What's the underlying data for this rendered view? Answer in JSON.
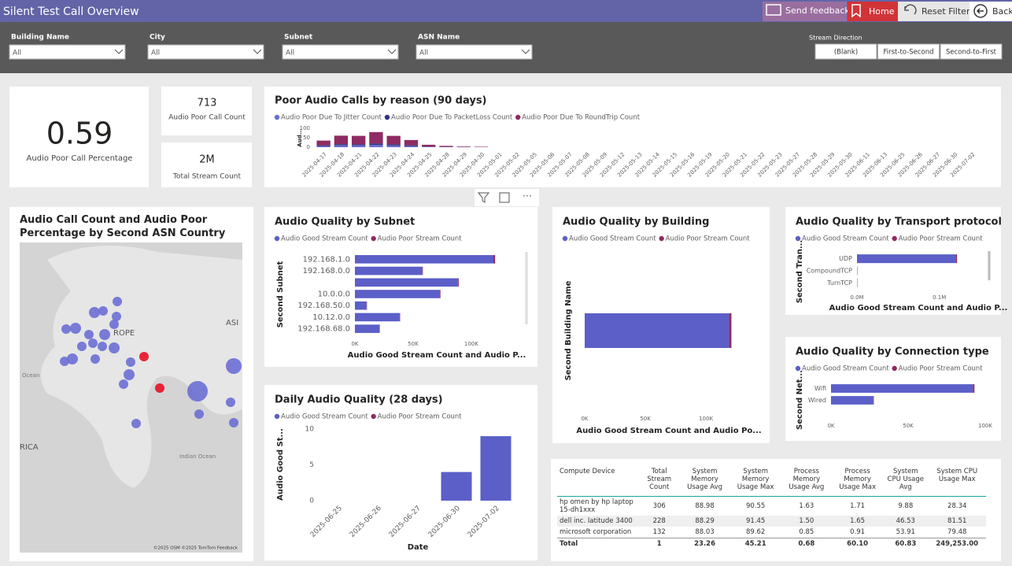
{
  "header": {
    "title": "Silent Test Call Overview",
    "buttons": [
      "Send feedback",
      "Home",
      "Reset Filters",
      "Back"
    ]
  },
  "filters": [
    {
      "label": "Building Name",
      "value": "All"
    },
    {
      "label": "City",
      "value": "All"
    },
    {
      "label": "Subnet",
      "value": "All"
    },
    {
      "label": "ASN Name",
      "value": "All"
    }
  ],
  "stream_direction": {
    "label": "Stream Direction",
    "options": [
      "(Blank)",
      "First-to-Second",
      "Second-to-First"
    ]
  },
  "cards": [
    {
      "value": 0.59,
      "label": "Audio Poor Call Percentage"
    },
    {
      "value": 713,
      "label": "Audio Poor Call Count"
    },
    {
      "value": "2M",
      "label": "Total Stream Count"
    }
  ],
  "map": {
    "title": "Audio Call Count and Audio Poor Percentage by Second ASN Country",
    "labels": [
      "ROPE",
      "ASI",
      "Ocean",
      "RICA",
      "Indian Ocean"
    ],
    "attribution": "©2025 OSM ©2025 TomTom Feedback"
  },
  "chart_data": [
    {
      "type": "stacked_bar",
      "title": "Poor Audio Calls by reason (90 days)",
      "y_label": "Aud...",
      "categories": [
        "2025-04-17",
        "2025-04-18",
        "2025-04-21",
        "2025-04-22",
        "2025-04-23",
        "2025-04-24",
        "2025-04-25",
        "2025-04-28",
        "2025-04-29",
        "2025-04-30",
        "2025-05-01",
        "2025-05-02",
        "2025-05-05",
        "2025-05-06",
        "2025-05-07",
        "2025-05-08",
        "2025-05-09",
        "2025-05-12",
        "2025-05-13",
        "2025-05-14",
        "2025-05-15",
        "2025-05-16",
        "2025-05-19",
        "2025-05-20",
        "2025-05-21",
        "2025-05-22",
        "2025-05-23",
        "2025-05-27",
        "2025-05-28",
        "2025-05-29",
        "2025-05-30",
        "2025-06-11",
        "2025-06-13",
        "2025-06-25",
        "2025-06-26",
        "2025-06-27",
        "2025-06-30",
        "2025-07-02"
      ],
      "series": [
        {
          "name": "Audio Poor Due To Jitter Count",
          "color": "#6a6ed3",
          "values": [
            6,
            10,
            10,
            12,
            9,
            6,
            2,
            1,
            1,
            1,
            0,
            0,
            0,
            0,
            0,
            0,
            0,
            0,
            0,
            0,
            0,
            0,
            0,
            0,
            0,
            0,
            0,
            0,
            0,
            0,
            0,
            0,
            0,
            0,
            0,
            0,
            0,
            0
          ]
        },
        {
          "name": "Audio Poor Due To PacketLoss Count",
          "color": "#2d3480",
          "values": [
            4,
            6,
            5,
            8,
            6,
            4,
            1,
            1,
            0,
            0,
            0,
            0,
            0,
            0,
            0,
            0,
            0,
            0,
            0,
            0,
            0,
            0,
            0,
            0,
            0,
            0,
            0,
            0,
            0,
            0,
            0,
            0,
            0,
            0,
            0,
            0,
            0,
            0
          ]
        },
        {
          "name": "Audio Poor Due To RoundTrip Count",
          "color": "#8e2b62",
          "values": [
            25,
            45,
            45,
            60,
            45,
            28,
            10,
            5,
            3,
            2,
            0,
            0,
            0,
            0,
            0,
            0,
            0,
            0,
            0,
            0,
            0,
            0,
            0,
            0,
            0,
            0,
            0,
            0,
            0,
            0,
            0,
            0,
            0,
            0,
            0,
            0,
            0,
            0
          ]
        }
      ],
      "ylim": [
        0,
        100
      ],
      "yticks": [
        0,
        50,
        100
      ]
    },
    {
      "type": "hbar",
      "title": "Audio Quality by Subnet",
      "x_label": "Audio Good Stream Count and Audio P...",
      "y_label": "Second Subnet",
      "categories": [
        "192.168.1.0",
        "192.168.0.0",
        null,
        "10.0.0.0",
        "192.168.50.0",
        "10.12.0.0",
        "192.168.68.0"
      ],
      "series": [
        {
          "name": "Audio Good Stream Count",
          "color": "#5b5fc7",
          "values": [
            119000,
            58000,
            88500,
            73000,
            10000,
            38500,
            21000
          ]
        },
        {
          "name": "Audio Poor Stream Count",
          "color": "#8e2b62",
          "values": [
            1500,
            400,
            700,
            500,
            100,
            300,
            200
          ]
        }
      ],
      "xlim": [
        0,
        140000
      ],
      "xticks": [
        {
          "value": 0,
          "label": "0K"
        },
        {
          "value": 50000,
          "label": "50K"
        },
        {
          "value": 100000,
          "label": "100K"
        }
      ]
    },
    {
      "type": "hbar",
      "title": "Audio Quality by Building",
      "x_label": "Audio Good Stream Count and Audio Po...",
      "y_label": "Second Building Name",
      "categories": [
        null
      ],
      "series": [
        {
          "name": "Audio Good Stream Count",
          "color": "#5b5fc7",
          "values": [
            119000
          ]
        },
        {
          "name": "Audio Poor Stream Count",
          "color": "#8e2b62",
          "values": [
            2000
          ]
        }
      ],
      "xlim": [
        0,
        135000
      ],
      "xticks": [
        {
          "value": 0,
          "label": "0K"
        },
        {
          "value": 50000,
          "label": "50K"
        },
        {
          "value": 100000,
          "label": "100K"
        }
      ]
    },
    {
      "type": "hbar",
      "title": "Audio Quality by Transport protocol",
      "x_label": "Audio Good Stream Count and Audio P...",
      "y_label": "Second Tran...",
      "categories": [
        "UDP",
        "CompoundTCP",
        "TurnTCP"
      ],
      "series": [
        {
          "name": "Audio Good Stream Count",
          "color": "#5b5fc7",
          "values": [
            120000,
            100,
            50
          ]
        },
        {
          "name": "Audio Poor Stream Count",
          "color": "#8e2b62",
          "values": [
            1500,
            0,
            0
          ]
        }
      ],
      "xlim": [
        0,
        150000
      ],
      "xticks": [
        {
          "value": 0,
          "label": "0.0M"
        },
        {
          "value": 100000,
          "label": "0.1M"
        }
      ]
    },
    {
      "type": "hbar",
      "title": "Audio Quality by Connection type",
      "y_label": "Second Net...",
      "categories": [
        "Wifi",
        "Wired"
      ],
      "series": [
        {
          "name": "Audio Good Stream Count",
          "color": "#5b5fc7",
          "values": [
            92000,
            27500
          ]
        },
        {
          "name": "Audio Poor Stream Count",
          "color": "#8e2b62",
          "values": [
            1000,
            200
          ]
        }
      ],
      "xlim": [
        0,
        100000
      ],
      "xticks": [
        {
          "value": 0,
          "label": "0K"
        },
        {
          "value": 50000,
          "label": "50K"
        },
        {
          "value": 100000,
          "label": "100K"
        }
      ]
    },
    {
      "type": "bar",
      "title": "Daily Audio Quality (28 days)",
      "x_label": "Date",
      "y_label": "Audio Good St...",
      "categories": [
        "2025-06-25",
        "2025-06-26",
        "2025-06-27",
        "2025-06-30",
        "2025-07-02"
      ],
      "series": [
        {
          "name": "Audio Good Stream Count",
          "color": "#5b5fc7",
          "values": [
            0,
            0,
            0,
            4,
            9
          ]
        },
        {
          "name": "Audio Poor Stream Count",
          "color": "#8e2b62",
          "values": [
            0,
            0,
            0,
            0,
            0
          ]
        }
      ],
      "ylim": [
        0,
        10
      ],
      "yticks": [
        0,
        5,
        10
      ]
    }
  ],
  "table": {
    "columns": [
      "Compute Device",
      "Total Stream Count",
      "System Memory Usage Avg",
      "System Memory Usage Max",
      "Process Memory Usage Avg",
      "Process Memory Usage Max",
      "System CPU Usage Avg",
      "System CPU Usage Max"
    ],
    "rows": [
      [
        "hp omen by hp laptop 15-dh1xxx",
        "306",
        "88.98",
        "90.55",
        "1.63",
        "1.71",
        "9.88",
        "28.34"
      ],
      [
        "dell inc. latitude 3400",
        "228",
        "88.29",
        "91.45",
        "1.50",
        "1.65",
        "46.53",
        "81.51"
      ],
      [
        "microsoft corporation",
        "132",
        "88.03",
        "89.62",
        "0.85",
        "0.91",
        "53.91",
        "79.48"
      ]
    ],
    "total": [
      "Total",
      "1",
      "23.26",
      "45.21",
      "0.68",
      "60.10",
      "60.83",
      "249,253.00"
    ]
  }
}
